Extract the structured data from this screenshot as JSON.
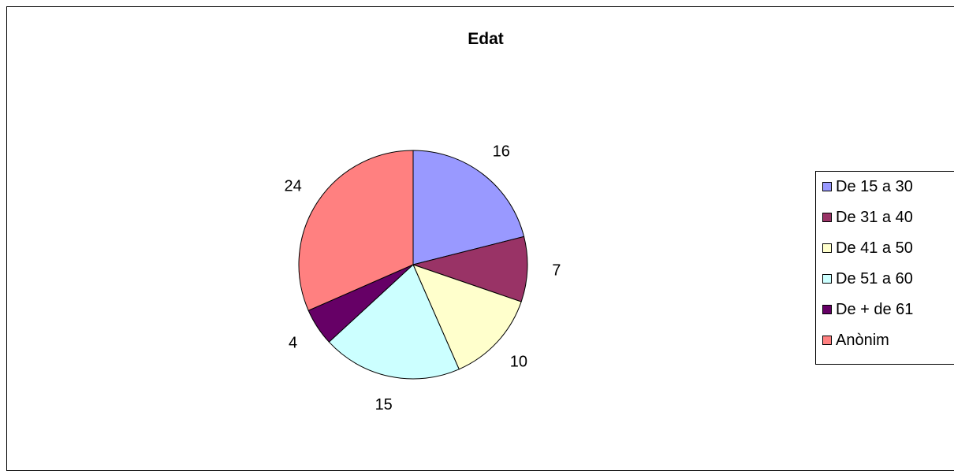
{
  "chart_data": {
    "type": "pie",
    "title": "Edat",
    "categories": [
      "De 15 a 30",
      "De 31 a 40",
      "De 41 a 50",
      "De 51 a 60",
      "De + de 61",
      "Anònim"
    ],
    "values": [
      16,
      7,
      10,
      15,
      4,
      24
    ],
    "data_labels": [
      "16",
      "7",
      "10",
      "15",
      "4",
      "24"
    ],
    "colors": [
      "#9999FF",
      "#993366",
      "#FFFFCC",
      "#CCFFFF",
      "#660066",
      "#FF8080"
    ],
    "start_angle": "12 o'clock",
    "direction": "clockwise",
    "legend_position": "right"
  }
}
